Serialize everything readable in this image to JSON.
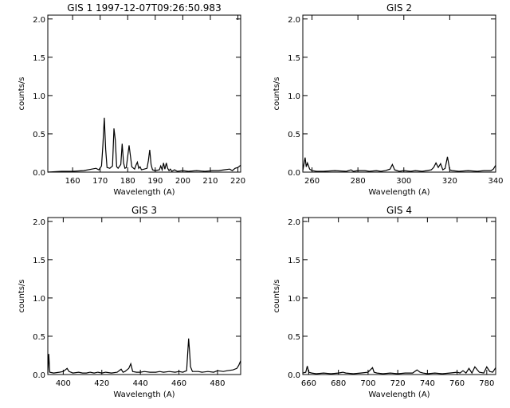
{
  "chart_data": [
    {
      "type": "line",
      "title": "GIS 1 1997-12-07T09:26:50.983",
      "xlabel": "Wavelength (A)",
      "ylabel": "counts/s",
      "xlim": [
        151,
        221
      ],
      "ylim": [
        0,
        2.05
      ],
      "xticks": [
        160,
        170,
        180,
        190,
        200,
        210,
        220
      ],
      "yticks": [
        0.0,
        0.5,
        1.0,
        1.5,
        2.0
      ],
      "x": [
        151,
        156,
        160,
        164,
        167,
        168.5,
        169.5,
        170.5,
        171,
        171.5,
        172,
        172.5,
        173.5,
        174.5,
        175,
        175.5,
        176,
        176.5,
        177.5,
        178,
        178.5,
        179,
        179.5,
        180.5,
        181.5,
        182.5,
        183,
        183.5,
        184,
        184.5,
        185,
        186,
        187,
        187.5,
        188,
        188.5,
        189,
        190,
        191.5,
        192,
        192.5,
        193,
        193.5,
        194,
        194.5,
        195,
        195.5,
        196,
        197,
        198,
        200,
        202,
        205,
        208,
        211,
        213,
        215,
        217,
        218,
        219,
        220,
        221
      ],
      "y": [
        0.0,
        0.01,
        0.01,
        0.02,
        0.04,
        0.05,
        0.03,
        0.08,
        0.35,
        0.71,
        0.3,
        0.06,
        0.05,
        0.08,
        0.57,
        0.42,
        0.07,
        0.05,
        0.1,
        0.37,
        0.12,
        0.05,
        0.06,
        0.35,
        0.07,
        0.04,
        0.09,
        0.13,
        0.05,
        0.07,
        0.03,
        0.04,
        0.05,
        0.15,
        0.29,
        0.1,
        0.03,
        0.02,
        0.03,
        0.08,
        0.03,
        0.12,
        0.04,
        0.12,
        0.05,
        0.02,
        0.04,
        0.01,
        0.03,
        0.01,
        0.02,
        0.01,
        0.02,
        0.01,
        0.02,
        0.02,
        0.03,
        0.04,
        0.02,
        0.05,
        0.06,
        0.09
      ]
    },
    {
      "type": "line",
      "title": "GIS 2",
      "xlabel": "Wavelength (A)",
      "ylabel": "counts/s",
      "xlim": [
        256,
        340
      ],
      "ylim": [
        0,
        2.05
      ],
      "xticks": [
        260,
        280,
        300,
        320,
        340
      ],
      "yticks": [
        0.0,
        0.5,
        1.0,
        1.5,
        2.0
      ],
      "x": [
        256,
        257,
        257.5,
        258,
        259,
        260,
        262,
        265,
        270,
        275,
        277,
        278,
        280,
        283,
        285,
        288,
        290,
        292,
        294,
        295,
        296,
        298,
        300,
        303,
        305,
        308,
        310,
        312,
        313,
        314,
        315,
        316,
        317,
        318,
        319,
        320,
        321,
        324,
        328,
        332,
        335,
        338,
        339,
        340
      ],
      "y": [
        0.02,
        0.19,
        0.07,
        0.12,
        0.04,
        0.02,
        0.01,
        0.01,
        0.02,
        0.01,
        0.03,
        0.01,
        0.02,
        0.02,
        0.01,
        0.02,
        0.01,
        0.02,
        0.04,
        0.1,
        0.03,
        0.01,
        0.02,
        0.01,
        0.02,
        0.01,
        0.02,
        0.03,
        0.06,
        0.12,
        0.06,
        0.11,
        0.03,
        0.05,
        0.2,
        0.03,
        0.02,
        0.01,
        0.02,
        0.01,
        0.02,
        0.02,
        0.04,
        0.09
      ]
    },
    {
      "type": "line",
      "title": "GIS 3",
      "xlabel": "Wavelength (A)",
      "ylabel": "counts/s",
      "xlim": [
        392,
        492
      ],
      "ylim": [
        0,
        2.05
      ],
      "xticks": [
        400,
        420,
        440,
        460,
        480
      ],
      "yticks": [
        0.0,
        0.5,
        1.0,
        1.5,
        2.0
      ],
      "x": [
        392,
        392.5,
        393,
        395,
        398,
        400,
        402,
        403,
        405,
        408,
        410,
        412,
        414,
        416,
        418,
        420,
        422,
        425,
        428,
        430,
        431,
        432,
        434,
        435,
        436,
        438,
        440,
        442,
        445,
        448,
        450,
        452,
        455,
        458,
        460,
        462,
        464,
        465,
        465.5,
        466,
        467,
        470,
        472,
        475,
        478,
        480,
        483,
        485,
        488,
        490,
        491,
        492
      ],
      "y": [
        0.02,
        0.27,
        0.03,
        0.02,
        0.03,
        0.04,
        0.08,
        0.04,
        0.02,
        0.03,
        0.02,
        0.02,
        0.03,
        0.02,
        0.03,
        0.02,
        0.03,
        0.02,
        0.03,
        0.07,
        0.03,
        0.04,
        0.08,
        0.14,
        0.04,
        0.03,
        0.03,
        0.04,
        0.03,
        0.03,
        0.04,
        0.03,
        0.04,
        0.03,
        0.04,
        0.03,
        0.05,
        0.47,
        0.3,
        0.1,
        0.04,
        0.04,
        0.03,
        0.04,
        0.03,
        0.05,
        0.04,
        0.05,
        0.06,
        0.08,
        0.12,
        0.18
      ]
    },
    {
      "type": "line",
      "title": "GIS 4",
      "xlabel": "Wavelength (A)",
      "ylabel": "counts/s",
      "xlim": [
        656,
        786
      ],
      "ylim": [
        0,
        2.05
      ],
      "xticks": [
        660,
        680,
        700,
        720,
        740,
        760,
        780
      ],
      "yticks": [
        0.0,
        0.5,
        1.0,
        1.5,
        2.0
      ],
      "x": [
        656,
        658,
        659,
        660,
        662,
        665,
        670,
        675,
        680,
        683,
        685,
        690,
        695,
        700,
        702,
        703,
        704,
        706,
        710,
        715,
        720,
        725,
        730,
        733,
        735,
        737,
        740,
        745,
        750,
        755,
        760,
        762,
        764,
        766,
        768,
        770,
        772,
        775,
        778,
        780,
        782,
        784,
        786
      ],
      "y": [
        0.02,
        0.03,
        0.11,
        0.03,
        0.02,
        0.01,
        0.02,
        0.01,
        0.02,
        0.03,
        0.02,
        0.01,
        0.02,
        0.03,
        0.07,
        0.09,
        0.03,
        0.02,
        0.01,
        0.02,
        0.01,
        0.02,
        0.02,
        0.06,
        0.03,
        0.02,
        0.01,
        0.02,
        0.01,
        0.02,
        0.03,
        0.02,
        0.05,
        0.02,
        0.08,
        0.02,
        0.1,
        0.03,
        0.02,
        0.1,
        0.04,
        0.03,
        0.09
      ]
    }
  ]
}
